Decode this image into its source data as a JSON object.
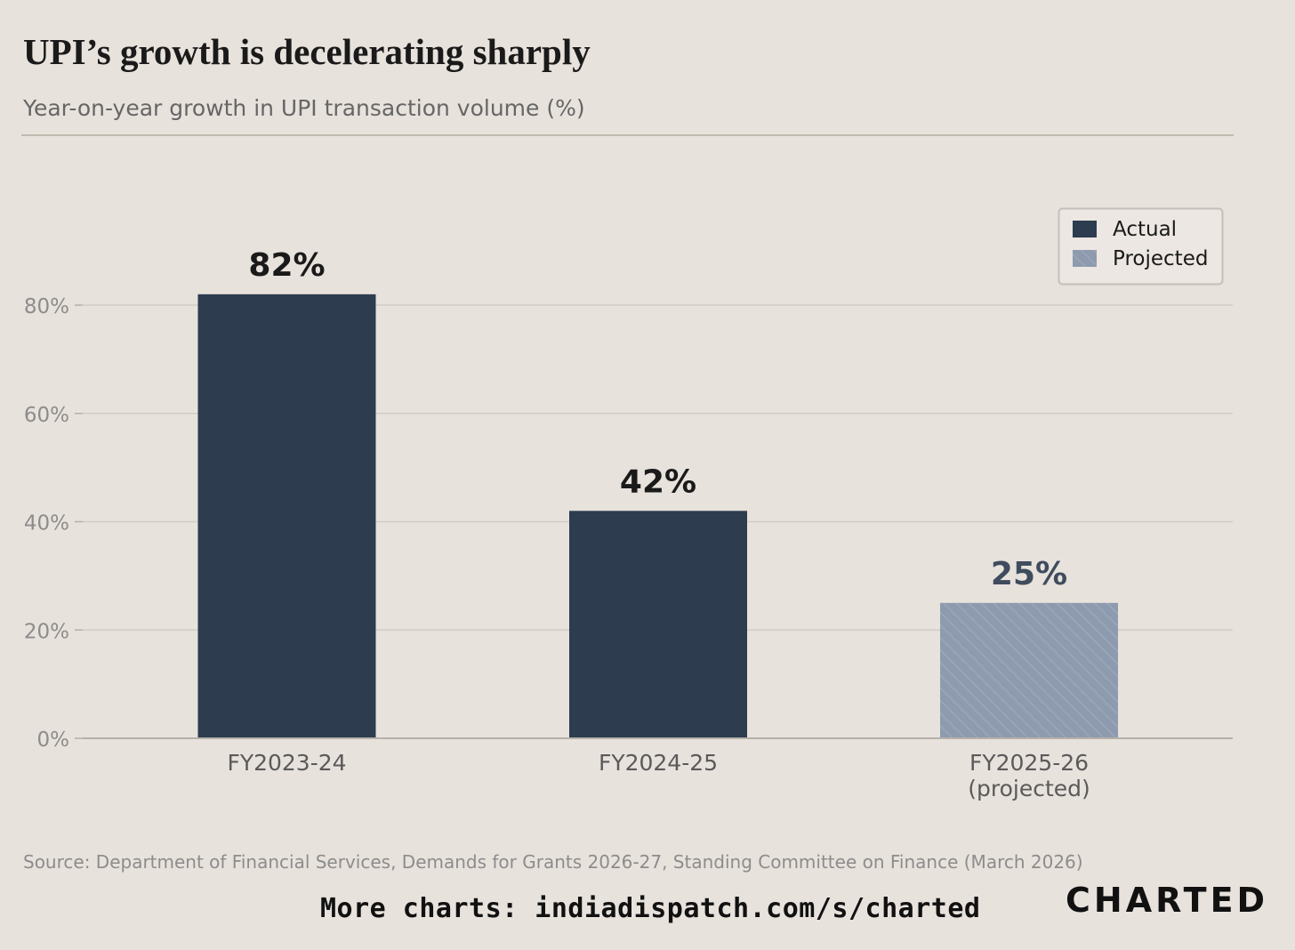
{
  "header": {
    "title": "UPI’s growth is decelerating sharply",
    "subtitle": "Year-on-year growth in UPI transaction volume (%)"
  },
  "footer": {
    "source": "Source: Department of Financial Services, Demands for Grants 2026-27, Standing Committee on Finance (March 2026)",
    "more_charts": "More charts: indiadispatch.com/s/charted",
    "brand": "CHARTED"
  },
  "colors": {
    "background": "#e8e2dc",
    "actual": "#2d3c4f",
    "projected": "#8e9bae",
    "projected_label": "#3f4c5e",
    "gridline": "#d2ccc6",
    "axis": "#b5b0aa",
    "tick_text": "#8c8c8c",
    "category_text": "#5a5a5a"
  },
  "chart_data": {
    "type": "bar",
    "title": "UPI’s growth is decelerating sharply",
    "subtitle": "Year-on-year growth in UPI transaction volume (%)",
    "xlabel": "",
    "ylabel": "",
    "ylim": [
      0,
      100
    ],
    "yticks": [
      0,
      20,
      40,
      60,
      80
    ],
    "ytick_labels": [
      "0%",
      "20%",
      "40%",
      "60%",
      "80%"
    ],
    "grid": true,
    "categories": [
      [
        "FY2023-24"
      ],
      [
        "FY2024-25"
      ],
      [
        "FY2025-26",
        "(projected)"
      ]
    ],
    "values": [
      82,
      42,
      25
    ],
    "value_labels": [
      "82%",
      "42%",
      "25%"
    ],
    "series_type": [
      "Actual",
      "Actual",
      "Projected"
    ],
    "legend": {
      "position": "top-right",
      "entries": [
        {
          "name": "Actual",
          "style": "solid"
        },
        {
          "name": "Projected",
          "style": "hatched"
        }
      ]
    }
  }
}
